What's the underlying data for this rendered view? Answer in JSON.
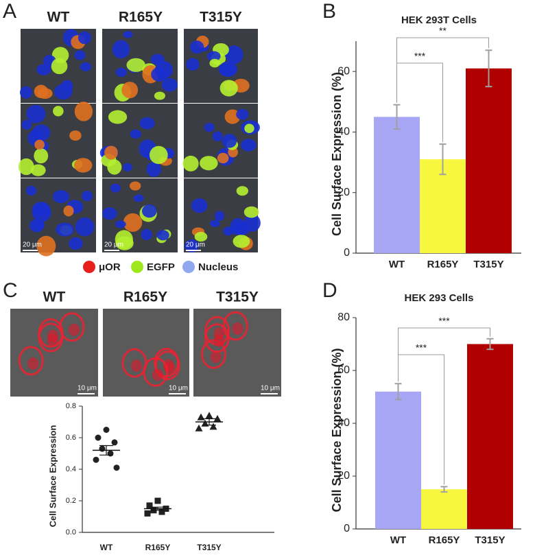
{
  "figure": {
    "panel_labels": [
      "A",
      "B",
      "C",
      "D"
    ],
    "panel_a": {
      "column_labels": [
        "WT",
        "R165Y",
        "T315Y"
      ],
      "scale_bar": "20 μm",
      "legend": [
        {
          "name": "μOR",
          "color": "#e8201c"
        },
        {
          "name": "EGFP",
          "color": "#9ee81c"
        },
        {
          "name": "Nucleus",
          "color": "#8fa8f0"
        }
      ]
    },
    "panel_c": {
      "column_labels": [
        "WT",
        "R165Y",
        "T315Y"
      ],
      "scale_bar": "10 μm"
    }
  },
  "chart_data": [
    {
      "type": "bar",
      "title": "HEK 293T Cells",
      "ylabel": "Cell Surface Expression (%)",
      "categories": [
        "WT",
        "R165Y",
        "T315Y"
      ],
      "values": [
        45,
        31,
        61
      ],
      "errors": [
        4,
        5,
        6
      ],
      "colors": [
        "#a7a7f5",
        "#f7f740",
        "#b00000"
      ],
      "error_color": "#a0a0a0",
      "ylim": [
        0,
        70
      ],
      "yticks": [
        0,
        20,
        40,
        60
      ],
      "annotations": [
        "***",
        "**"
      ]
    },
    {
      "type": "scatter",
      "ylabel": "Cell Surface Expression",
      "ylim": [
        0,
        0.8
      ],
      "yticks": [
        {
          "value": 0,
          "label": "0.0"
        },
        0.2,
        0.4,
        0.6,
        0.8
      ],
      "color": "#222222",
      "series": [
        {
          "name": "WT",
          "marker": "circle",
          "values": [
            0.65,
            0.6,
            0.57,
            0.53,
            0.5,
            0.46,
            0.41
          ],
          "mean": 0.52,
          "sem": 0.03
        },
        {
          "name": "R165Y",
          "marker": "square",
          "values": [
            0.2,
            0.17,
            0.15,
            0.14,
            0.13,
            0.12
          ],
          "mean": 0.15,
          "sem": 0.01
        },
        {
          "name": "T315Y",
          "marker": "triangle",
          "values": [
            0.74,
            0.73,
            0.72,
            0.69,
            0.67,
            0.66
          ],
          "mean": 0.7,
          "sem": 0.02
        }
      ]
    },
    {
      "type": "bar",
      "title": "HEK 293 Cells",
      "ylabel": "Cell Surface Expression (%)",
      "categories": [
        "WT",
        "R165Y",
        "T315Y"
      ],
      "values": [
        52,
        15,
        70
      ],
      "errors": [
        3,
        1,
        2
      ],
      "colors": [
        "#a7a7f5",
        "#f7f740",
        "#b00000"
      ],
      "error_color": "#a0a0a0",
      "ylim": [
        0,
        80
      ],
      "yticks": [
        0,
        20,
        40,
        60,
        80
      ],
      "annotations": [
        "***",
        "***"
      ]
    }
  ]
}
